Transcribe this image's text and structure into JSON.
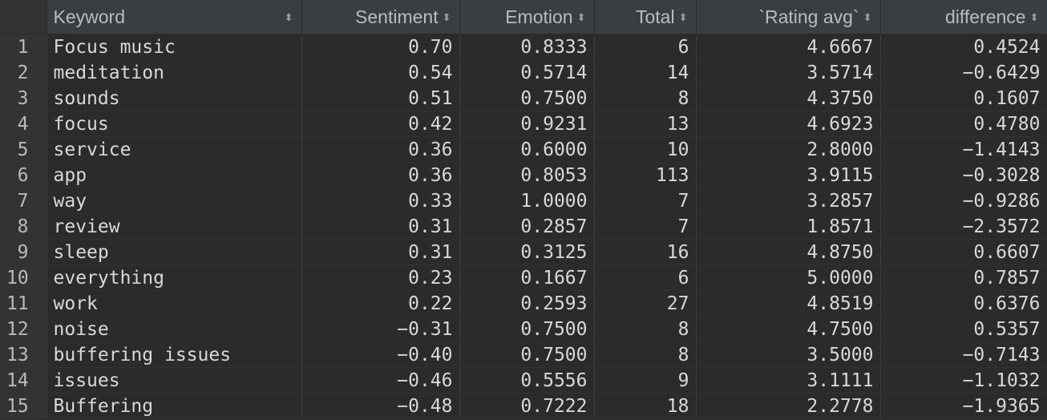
{
  "columns": [
    {
      "label": "Keyword"
    },
    {
      "label": "Sentiment"
    },
    {
      "label": "Emotion"
    },
    {
      "label": "Total"
    },
    {
      "label": "`Rating avg`"
    },
    {
      "label": "difference"
    }
  ],
  "sort_icon": "sort-updown-icon",
  "rows": [
    {
      "index": "1",
      "keyword": "Focus music",
      "sentiment": "0.70",
      "emotion": "0.8333",
      "total": "6",
      "rating_avg": "4.6667",
      "difference": "0.4524"
    },
    {
      "index": "2",
      "keyword": "meditation",
      "sentiment": "0.54",
      "emotion": "0.5714",
      "total": "14",
      "rating_avg": "3.5714",
      "difference": "−0.6429"
    },
    {
      "index": "3",
      "keyword": "sounds",
      "sentiment": "0.51",
      "emotion": "0.7500",
      "total": "8",
      "rating_avg": "4.3750",
      "difference": "0.1607"
    },
    {
      "index": "4",
      "keyword": "focus",
      "sentiment": "0.42",
      "emotion": "0.9231",
      "total": "13",
      "rating_avg": "4.6923",
      "difference": "0.4780"
    },
    {
      "index": "5",
      "keyword": "service",
      "sentiment": "0.36",
      "emotion": "0.6000",
      "total": "10",
      "rating_avg": "2.8000",
      "difference": "−1.4143"
    },
    {
      "index": "6",
      "keyword": "app",
      "sentiment": "0.36",
      "emotion": "0.8053",
      "total": "113",
      "rating_avg": "3.9115",
      "difference": "−0.3028"
    },
    {
      "index": "7",
      "keyword": "way",
      "sentiment": "0.33",
      "emotion": "1.0000",
      "total": "7",
      "rating_avg": "3.2857",
      "difference": "−0.9286"
    },
    {
      "index": "8",
      "keyword": "review",
      "sentiment": "0.31",
      "emotion": "0.2857",
      "total": "7",
      "rating_avg": "1.8571",
      "difference": "−2.3572"
    },
    {
      "index": "9",
      "keyword": "sleep",
      "sentiment": "0.31",
      "emotion": "0.3125",
      "total": "16",
      "rating_avg": "4.8750",
      "difference": "0.6607"
    },
    {
      "index": "10",
      "keyword": "everything",
      "sentiment": "0.23",
      "emotion": "0.1667",
      "total": "6",
      "rating_avg": "5.0000",
      "difference": "0.7857"
    },
    {
      "index": "11",
      "keyword": "work",
      "sentiment": "0.22",
      "emotion": "0.2593",
      "total": "27",
      "rating_avg": "4.8519",
      "difference": "0.6376"
    },
    {
      "index": "12",
      "keyword": "noise",
      "sentiment": "−0.31",
      "emotion": "0.7500",
      "total": "8",
      "rating_avg": "4.7500",
      "difference": "0.5357"
    },
    {
      "index": "13",
      "keyword": "buffering issues",
      "sentiment": "−0.40",
      "emotion": "0.7500",
      "total": "8",
      "rating_avg": "3.5000",
      "difference": "−0.7143"
    },
    {
      "index": "14",
      "keyword": "issues",
      "sentiment": "−0.46",
      "emotion": "0.5556",
      "total": "9",
      "rating_avg": "3.1111",
      "difference": "−1.1032"
    },
    {
      "index": "15",
      "keyword": "Buffering",
      "sentiment": "−0.48",
      "emotion": "0.7222",
      "total": "18",
      "rating_avg": "2.2778",
      "difference": "−1.9365"
    }
  ]
}
